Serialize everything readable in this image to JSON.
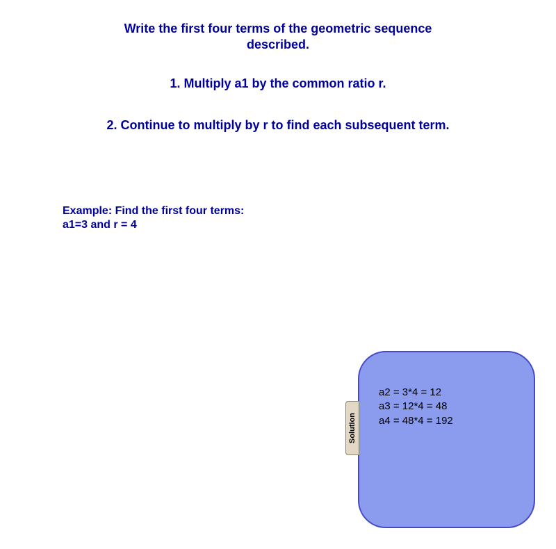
{
  "title": "Write the first four terms of the geometric sequence described.",
  "step1": "1. Multiply a1 by the common ratio r.",
  "step2": "2. Continue to multiply by r to find each subsequent term.",
  "example": {
    "label": "Example: Find the first four terms:",
    "values": "a1=3 and r = 4"
  },
  "solution": {
    "tab_label": "Solution",
    "lines": {
      "l1": "a2 = 3*4 = 12",
      "l2": "a3 = 12*4 = 48",
      "l3": "a4 = 48*4 = 192"
    },
    "box_fill": "#8b9cef",
    "box_stroke": "#4548c8",
    "tab_fill": "#e2d8c5",
    "tab_stroke": "#8a8a6a"
  },
  "text_color": "#000099",
  "background_color": "#ffffff"
}
